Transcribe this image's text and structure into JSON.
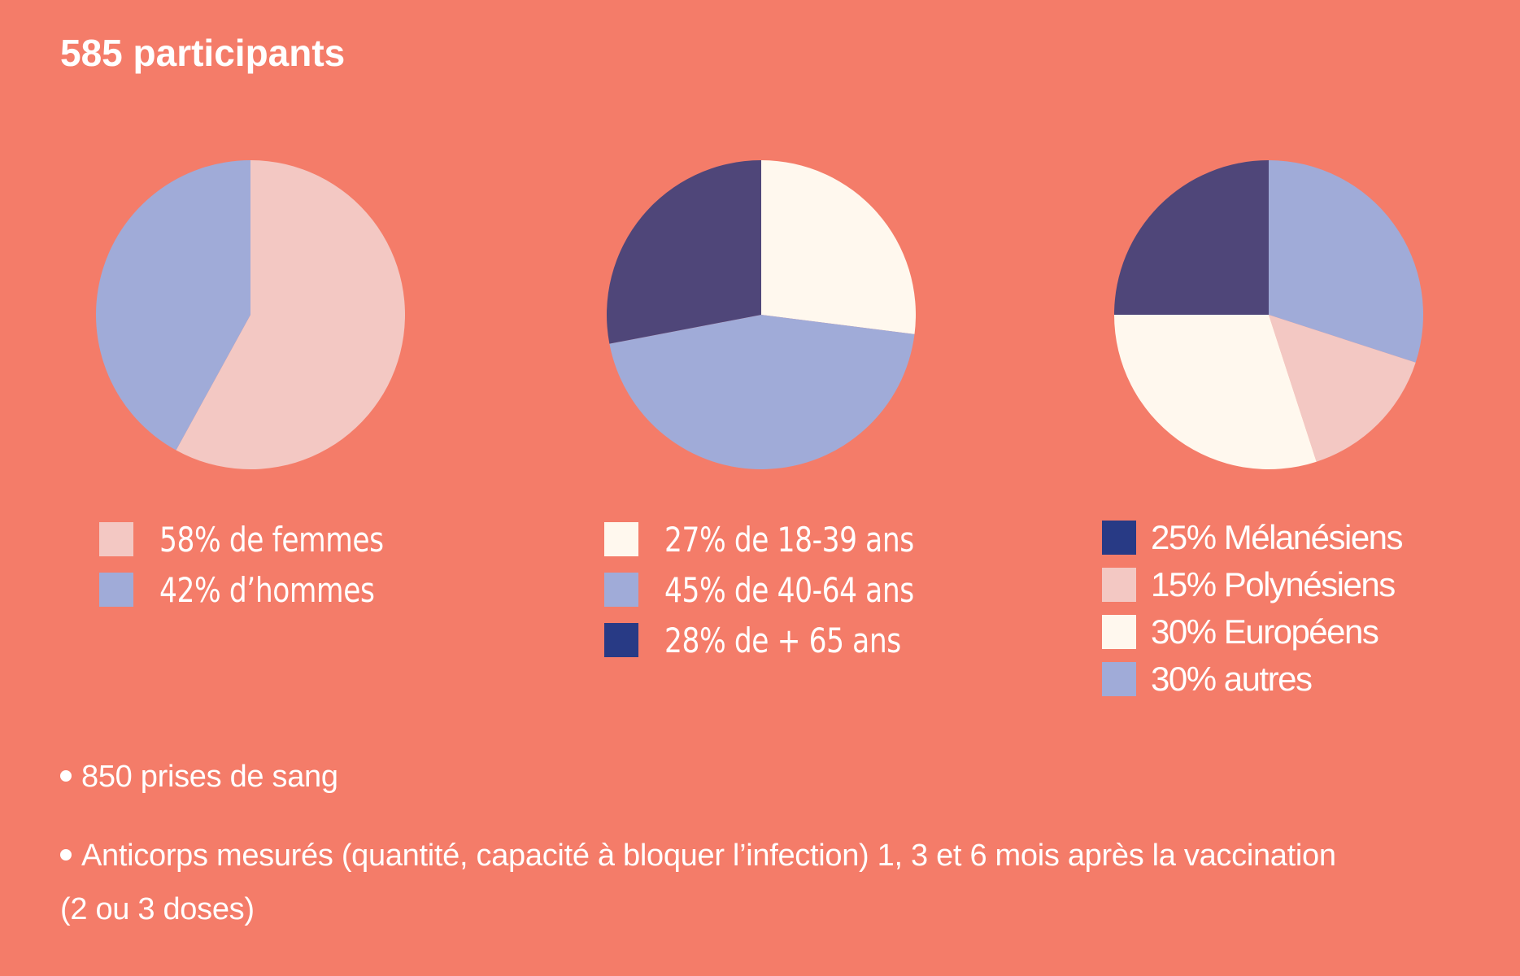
{
  "title": "585 participants",
  "colors": {
    "background": "#F47C69",
    "lavender": "#A0ABD8",
    "pale_pink": "#F3C8C3",
    "cream": "#FFF8EE",
    "dark_purple": "#4F4679",
    "navy": "#283A85"
  },
  "chart_data": [
    {
      "type": "pie",
      "slices": [
        {
          "label": "58% de femmes",
          "value": 58,
          "color": "#F3C8C3"
        },
        {
          "label": "42% d’hommes",
          "value": 42,
          "color": "#A0ABD8"
        }
      ],
      "legend": [
        {
          "label": "58% de femmes",
          "color": "#F3C8C3"
        },
        {
          "label": "42% d’hommes",
          "color": "#A0ABD8"
        }
      ]
    },
    {
      "type": "pie",
      "slices": [
        {
          "label": "27% de 18-39 ans",
          "value": 27,
          "color": "#FFF8EE"
        },
        {
          "label": "45% de 40-64 ans",
          "value": 45,
          "color": "#A0ABD8"
        },
        {
          "label": "28% de + 65 ans",
          "value": 28,
          "color": "#4F4679"
        }
      ],
      "legend": [
        {
          "label": "27% de 18-39 ans",
          "color": "#FFF8EE"
        },
        {
          "label": "45% de 40-64 ans",
          "color": "#A0ABD8"
        },
        {
          "label": "28% de + 65 ans",
          "color": "#283A85"
        }
      ]
    },
    {
      "type": "pie",
      "slices": [
        {
          "label": "30% autres",
          "value": 30,
          "color": "#A0ABD8"
        },
        {
          "label": "15% Polynésiens",
          "value": 15,
          "color": "#F3C8C3"
        },
        {
          "label": "30% Européens",
          "value": 30,
          "color": "#FFF8EE"
        },
        {
          "label": "25% Mélanésiens",
          "value": 25,
          "color": "#4F4679"
        }
      ],
      "legend": [
        {
          "label": "25% Mélanésiens",
          "color": "#283A85"
        },
        {
          "label": "15% Polynésiens",
          "color": "#F3C8C3"
        },
        {
          "label": "30% Européens",
          "color": "#FFF8EE"
        },
        {
          "label": "30% autres",
          "color": "#A0ABD8"
        }
      ]
    }
  ],
  "notes": [
    "850 prises de sang",
    "Anticorps mesurés (quantité, capacité à bloquer l’infection) 1, 3 et 6 mois après la vaccination",
    "(2 ou 3 doses)"
  ]
}
